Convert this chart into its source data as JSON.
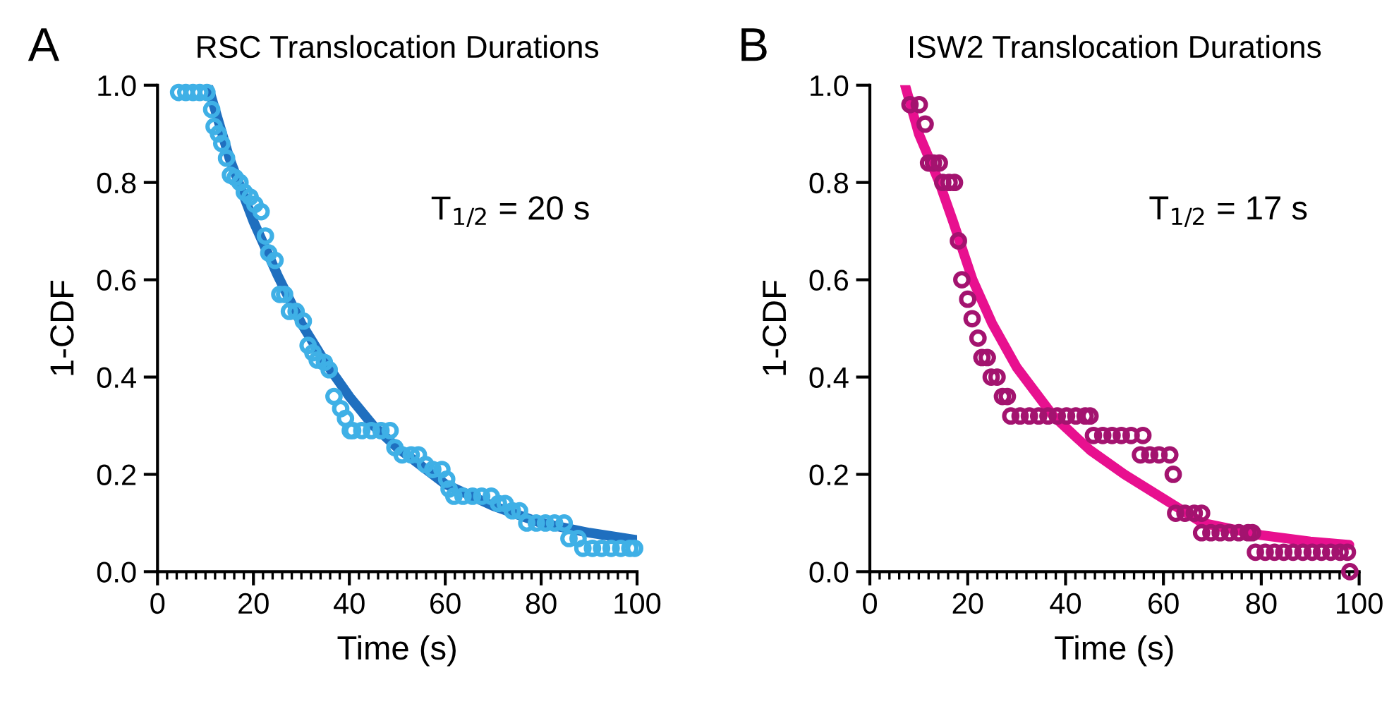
{
  "chart_data": [
    {
      "type": "scatter",
      "title": "RSC Translocation Durations",
      "xlabel": "Time (s)",
      "ylabel": "1-CDF",
      "annotations": [
        "A",
        "T$_{1/2}$ = 20 s"
      ],
      "xlim": [
        0,
        100
      ],
      "ylim": [
        0,
        1
      ],
      "xticks": [
        0,
        20,
        40,
        60,
        80,
        100
      ],
      "yticks": [
        {
          "value": 0,
          "label": "0.0"
        },
        {
          "value": 0.2,
          "label": "0.2"
        },
        {
          "value": 0.4,
          "label": "0.4"
        },
        {
          "value": 0.6,
          "label": "0.6"
        },
        {
          "value": 0.8,
          "label": "0.8"
        },
        {
          "value": 1,
          "label": "1.0"
        }
      ],
      "grid": false,
      "series": [
        {
          "type": "line",
          "color": "#1f6fbf",
          "x": [
            10.5,
            15,
            20,
            25,
            30,
            35,
            40,
            45,
            50,
            60,
            70,
            80,
            90,
            100
          ],
          "values": [
            1.0,
            0.85,
            0.72,
            0.61,
            0.51,
            0.43,
            0.36,
            0.3,
            0.255,
            0.18,
            0.135,
            0.1,
            0.08,
            0.065
          ]
        },
        {
          "marker": "circle",
          "color": "#3fb0e6",
          "x": [
            4.4,
            5.9,
            7.4,
            8.8,
            10.3,
            11.3,
            11.8,
            12.7,
            13.4,
            14.4,
            15.2,
            16.2,
            17.2,
            18.1,
            19.3,
            20.3,
            21.6,
            22.5,
            23.2,
            24.5,
            25.5,
            26.5,
            27.5,
            28.9,
            30.4,
            31.4,
            32.4,
            33.3,
            34.8,
            35.8,
            36.8,
            38.2,
            39.2,
            40.2,
            40.7,
            42.6,
            44.6,
            46.6,
            48.5,
            49.5,
            51,
            52.9,
            54.4,
            55.9,
            57.4,
            59.3,
            60.3,
            60.8,
            61.8,
            63.7,
            65.7,
            67.6,
            69.6,
            71.1,
            72.5,
            74,
            75.5,
            77,
            79,
            80.9,
            82.8,
            84.8,
            85.8,
            87.7,
            88.7,
            90.7,
            92.6,
            94.6,
            96.6,
            98.5,
            99.5
          ],
          "values": [
            0.985,
            0.985,
            0.985,
            0.985,
            0.985,
            0.95,
            0.915,
            0.9,
            0.88,
            0.85,
            0.815,
            0.81,
            0.8,
            0.78,
            0.77,
            0.755,
            0.74,
            0.69,
            0.655,
            0.64,
            0.57,
            0.57,
            0.535,
            0.535,
            0.515,
            0.465,
            0.45,
            0.435,
            0.43,
            0.415,
            0.36,
            0.335,
            0.315,
            0.29,
            0.29,
            0.29,
            0.29,
            0.29,
            0.29,
            0.255,
            0.24,
            0.24,
            0.24,
            0.22,
            0.21,
            0.21,
            0.19,
            0.17,
            0.155,
            0.155,
            0.155,
            0.155,
            0.155,
            0.14,
            0.14,
            0.125,
            0.125,
            0.1,
            0.1,
            0.1,
            0.1,
            0.1,
            0.068,
            0.068,
            0.048,
            0.048,
            0.048,
            0.048,
            0.048,
            0.048,
            0.048
          ]
        }
      ]
    },
    {
      "type": "scatter",
      "title": "ISW2 Translocation Durations",
      "xlabel": "Time (s)",
      "ylabel": "1-CDF",
      "annotations": [
        "B",
        "T$_{1/2}$ = 17 s"
      ],
      "xlim": [
        0,
        100
      ],
      "ylim": [
        0,
        1
      ],
      "xticks": [
        0,
        20,
        40,
        60,
        80,
        100
      ],
      "yticks": [
        {
          "value": 0,
          "label": "0.0"
        },
        {
          "value": 0.2,
          "label": "0.2"
        },
        {
          "value": 0.4,
          "label": "0.4"
        },
        {
          "value": 0.6,
          "label": "0.6"
        },
        {
          "value": 0.8,
          "label": "0.8"
        },
        {
          "value": 1,
          "label": "1.0"
        }
      ],
      "grid": false,
      "series": [
        {
          "type": "line",
          "color": "#e8108f",
          "x": [
            7.2,
            10,
            14.2,
            17,
            21,
            25,
            30,
            37.5,
            45,
            52,
            60,
            68,
            80,
            90,
            98
          ],
          "values": [
            1.0,
            0.9,
            0.8,
            0.72,
            0.6,
            0.51,
            0.42,
            0.32,
            0.25,
            0.2,
            0.15,
            0.1,
            0.075,
            0.062,
            0.055
          ]
        },
        {
          "marker": "circle",
          "color": "#a3136f",
          "x": [
            8.2,
            10.1,
            11.3,
            12,
            13,
            14.2,
            14.9,
            16.2,
            17.3,
            18.1,
            18.8,
            20,
            20.9,
            22.1,
            22.9,
            24,
            24.8,
            26,
            27.1,
            28.1,
            28.8,
            30.7,
            32.6,
            34.5,
            36.4,
            38.3,
            40.2,
            42.1,
            44,
            45,
            45.7,
            47.6,
            49.5,
            51.4,
            53.4,
            55.8,
            55.3,
            57.2,
            59.1,
            61.3,
            62,
            62.5,
            64.4,
            66.3,
            67.8,
            67.8,
            69.7,
            71.6,
            73.5,
            75.4,
            77.3,
            78.2,
            78.8,
            80.8,
            82.7,
            84.6,
            86.5,
            88.5,
            90.4,
            92.3,
            94.2,
            96.1,
            97.6,
            98.1
          ],
          "values": [
            0.96,
            0.96,
            0.92,
            0.84,
            0.84,
            0.84,
            0.8,
            0.8,
            0.8,
            0.68,
            0.6,
            0.56,
            0.52,
            0.48,
            0.44,
            0.44,
            0.4,
            0.4,
            0.36,
            0.36,
            0.32,
            0.32,
            0.32,
            0.32,
            0.32,
            0.32,
            0.32,
            0.32,
            0.32,
            0.32,
            0.28,
            0.28,
            0.28,
            0.28,
            0.28,
            0.28,
            0.24,
            0.24,
            0.24,
            0.24,
            0.2,
            0.12,
            0.12,
            0.12,
            0.12,
            0.08,
            0.08,
            0.08,
            0.08,
            0.08,
            0.08,
            0.08,
            0.04,
            0.04,
            0.04,
            0.04,
            0.04,
            0.04,
            0.04,
            0.04,
            0.04,
            0.04,
            0.04,
            0.0
          ]
        }
      ]
    }
  ]
}
